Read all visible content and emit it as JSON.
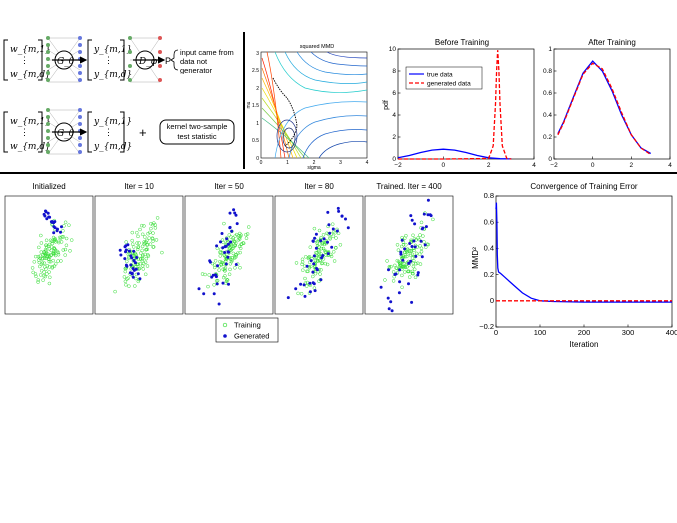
{
  "diagram": {
    "top": {
      "inputs": [
        "w_{m,1}",
        "⋮",
        "w_{m,d}"
      ],
      "generator": "G_θ",
      "outputs": [
        "y_{m,1}",
        "⋮",
        "y_{m,d}"
      ],
      "discriminator": "D_φ",
      "prob": "P",
      "callout": "input came from data not generator"
    },
    "bottom": {
      "inputs": [
        "w_{m,1}",
        "⋮",
        "w_{m,d}"
      ],
      "generator": "G_θ",
      "outputs": [
        "y_{m,1}",
        "⋮",
        "y_{m,d}"
      ],
      "plus": "+",
      "kernel_box": "kernel two-sample test statistic"
    }
  },
  "contour": {
    "title": "squared MMD",
    "xlabel": "sigma",
    "ylabel": "mu",
    "xticks": [
      "0",
      "1",
      "2",
      "3",
      "4"
    ],
    "yticks": [
      "0",
      "0.5",
      "1",
      "1.5",
      "2",
      "2.5",
      "3"
    ]
  },
  "chart_data": [
    {
      "type": "line",
      "title": "Before Training",
      "xlabel": "",
      "ylabel": "pdf",
      "xlim": [
        -2,
        4
      ],
      "ylim": [
        0,
        10
      ],
      "xticks": [
        "−2",
        "0",
        "2",
        "4"
      ],
      "yticks": [
        "0",
        "2",
        "4",
        "6",
        "8",
        "10"
      ],
      "legend_position": "upper-left",
      "series": [
        {
          "name": "true data",
          "color": "#0000ff",
          "dash": "solid",
          "x": [
            -2,
            -1.5,
            -1,
            -0.5,
            0,
            0.5,
            1,
            1.5,
            2,
            2.5,
            3
          ],
          "y": [
            0.11,
            0.32,
            0.59,
            0.81,
            0.89,
            0.81,
            0.59,
            0.32,
            0.11,
            0.03,
            0.01
          ]
        },
        {
          "name": "generated data",
          "color": "#ff0000",
          "dash": "dashed",
          "x": [
            -2,
            0,
            2.0,
            2.2,
            2.3,
            2.35,
            2.4,
            2.45,
            2.5,
            2.6,
            2.8,
            3
          ],
          "y": [
            0,
            0,
            0.05,
            1.2,
            5.0,
            8.0,
            9.9,
            8.0,
            5.0,
            1.2,
            0.05,
            0
          ]
        }
      ]
    },
    {
      "type": "line",
      "title": "After Training",
      "xlabel": "",
      "ylabel": "",
      "xlim": [
        -2,
        4
      ],
      "ylim": [
        0,
        1
      ],
      "xticks": [
        "−2",
        "0",
        "2",
        "4"
      ],
      "yticks": [
        "0",
        "0.2",
        "0.4",
        "0.6",
        "0.8",
        "1"
      ],
      "series": [
        {
          "name": "",
          "color": "#0000ff",
          "dash": "solid",
          "x": [
            -1.8,
            -1.5,
            -1,
            -0.5,
            0,
            0.5,
            1,
            1.5,
            2,
            2.5,
            3
          ],
          "y": [
            0.23,
            0.34,
            0.56,
            0.78,
            0.89,
            0.8,
            0.62,
            0.4,
            0.22,
            0.1,
            0.05
          ]
        },
        {
          "name": "",
          "color": "#ff0000",
          "dash": "dashed",
          "x": [
            -1.8,
            -1.5,
            -1,
            -0.5,
            0,
            0.5,
            1,
            1.5,
            2,
            2.5,
            3
          ],
          "y": [
            0.22,
            0.33,
            0.55,
            0.77,
            0.87,
            0.82,
            0.64,
            0.42,
            0.22,
            0.1,
            0.04
          ]
        }
      ]
    },
    {
      "type": "scatter",
      "panels": [
        "Initialized",
        "Iter = 10",
        "Iter = 50",
        "Iter = 80",
        "Trained. Iter = 400"
      ],
      "legend": [
        "Training",
        "Generated"
      ],
      "colors": {
        "training": "#33dd33",
        "generated": "#1111cc"
      }
    },
    {
      "type": "line",
      "title": "Convergence of Training Error",
      "xlabel": "Iteration",
      "ylabel": "MMD²",
      "xlim": [
        0,
        400
      ],
      "ylim": [
        -0.2,
        0.8
      ],
      "xticks": [
        "0",
        "100",
        "200",
        "300",
        "400"
      ],
      "yticks": [
        "−0.2",
        "0",
        "0.2",
        "0.4",
        "0.6",
        "0.8"
      ],
      "series": [
        {
          "name": "",
          "color": "#0000ff",
          "dash": "solid",
          "x": [
            0,
            1,
            2,
            3,
            4,
            6,
            10,
            20,
            40,
            60,
            80,
            100,
            130,
            200,
            300,
            400
          ],
          "y": [
            0.7,
            0.75,
            0.6,
            0.35,
            0.25,
            0.22,
            0.21,
            0.18,
            0.12,
            0.06,
            0.02,
            0.0,
            -0.005,
            -0.01,
            -0.01,
            -0.01
          ]
        },
        {
          "name": "",
          "color": "#ff0000",
          "dash": "dashed",
          "x": [
            0,
            10,
            50,
            100,
            200,
            400
          ],
          "y": [
            0,
            0,
            0,
            0,
            0,
            0
          ]
        }
      ]
    }
  ]
}
